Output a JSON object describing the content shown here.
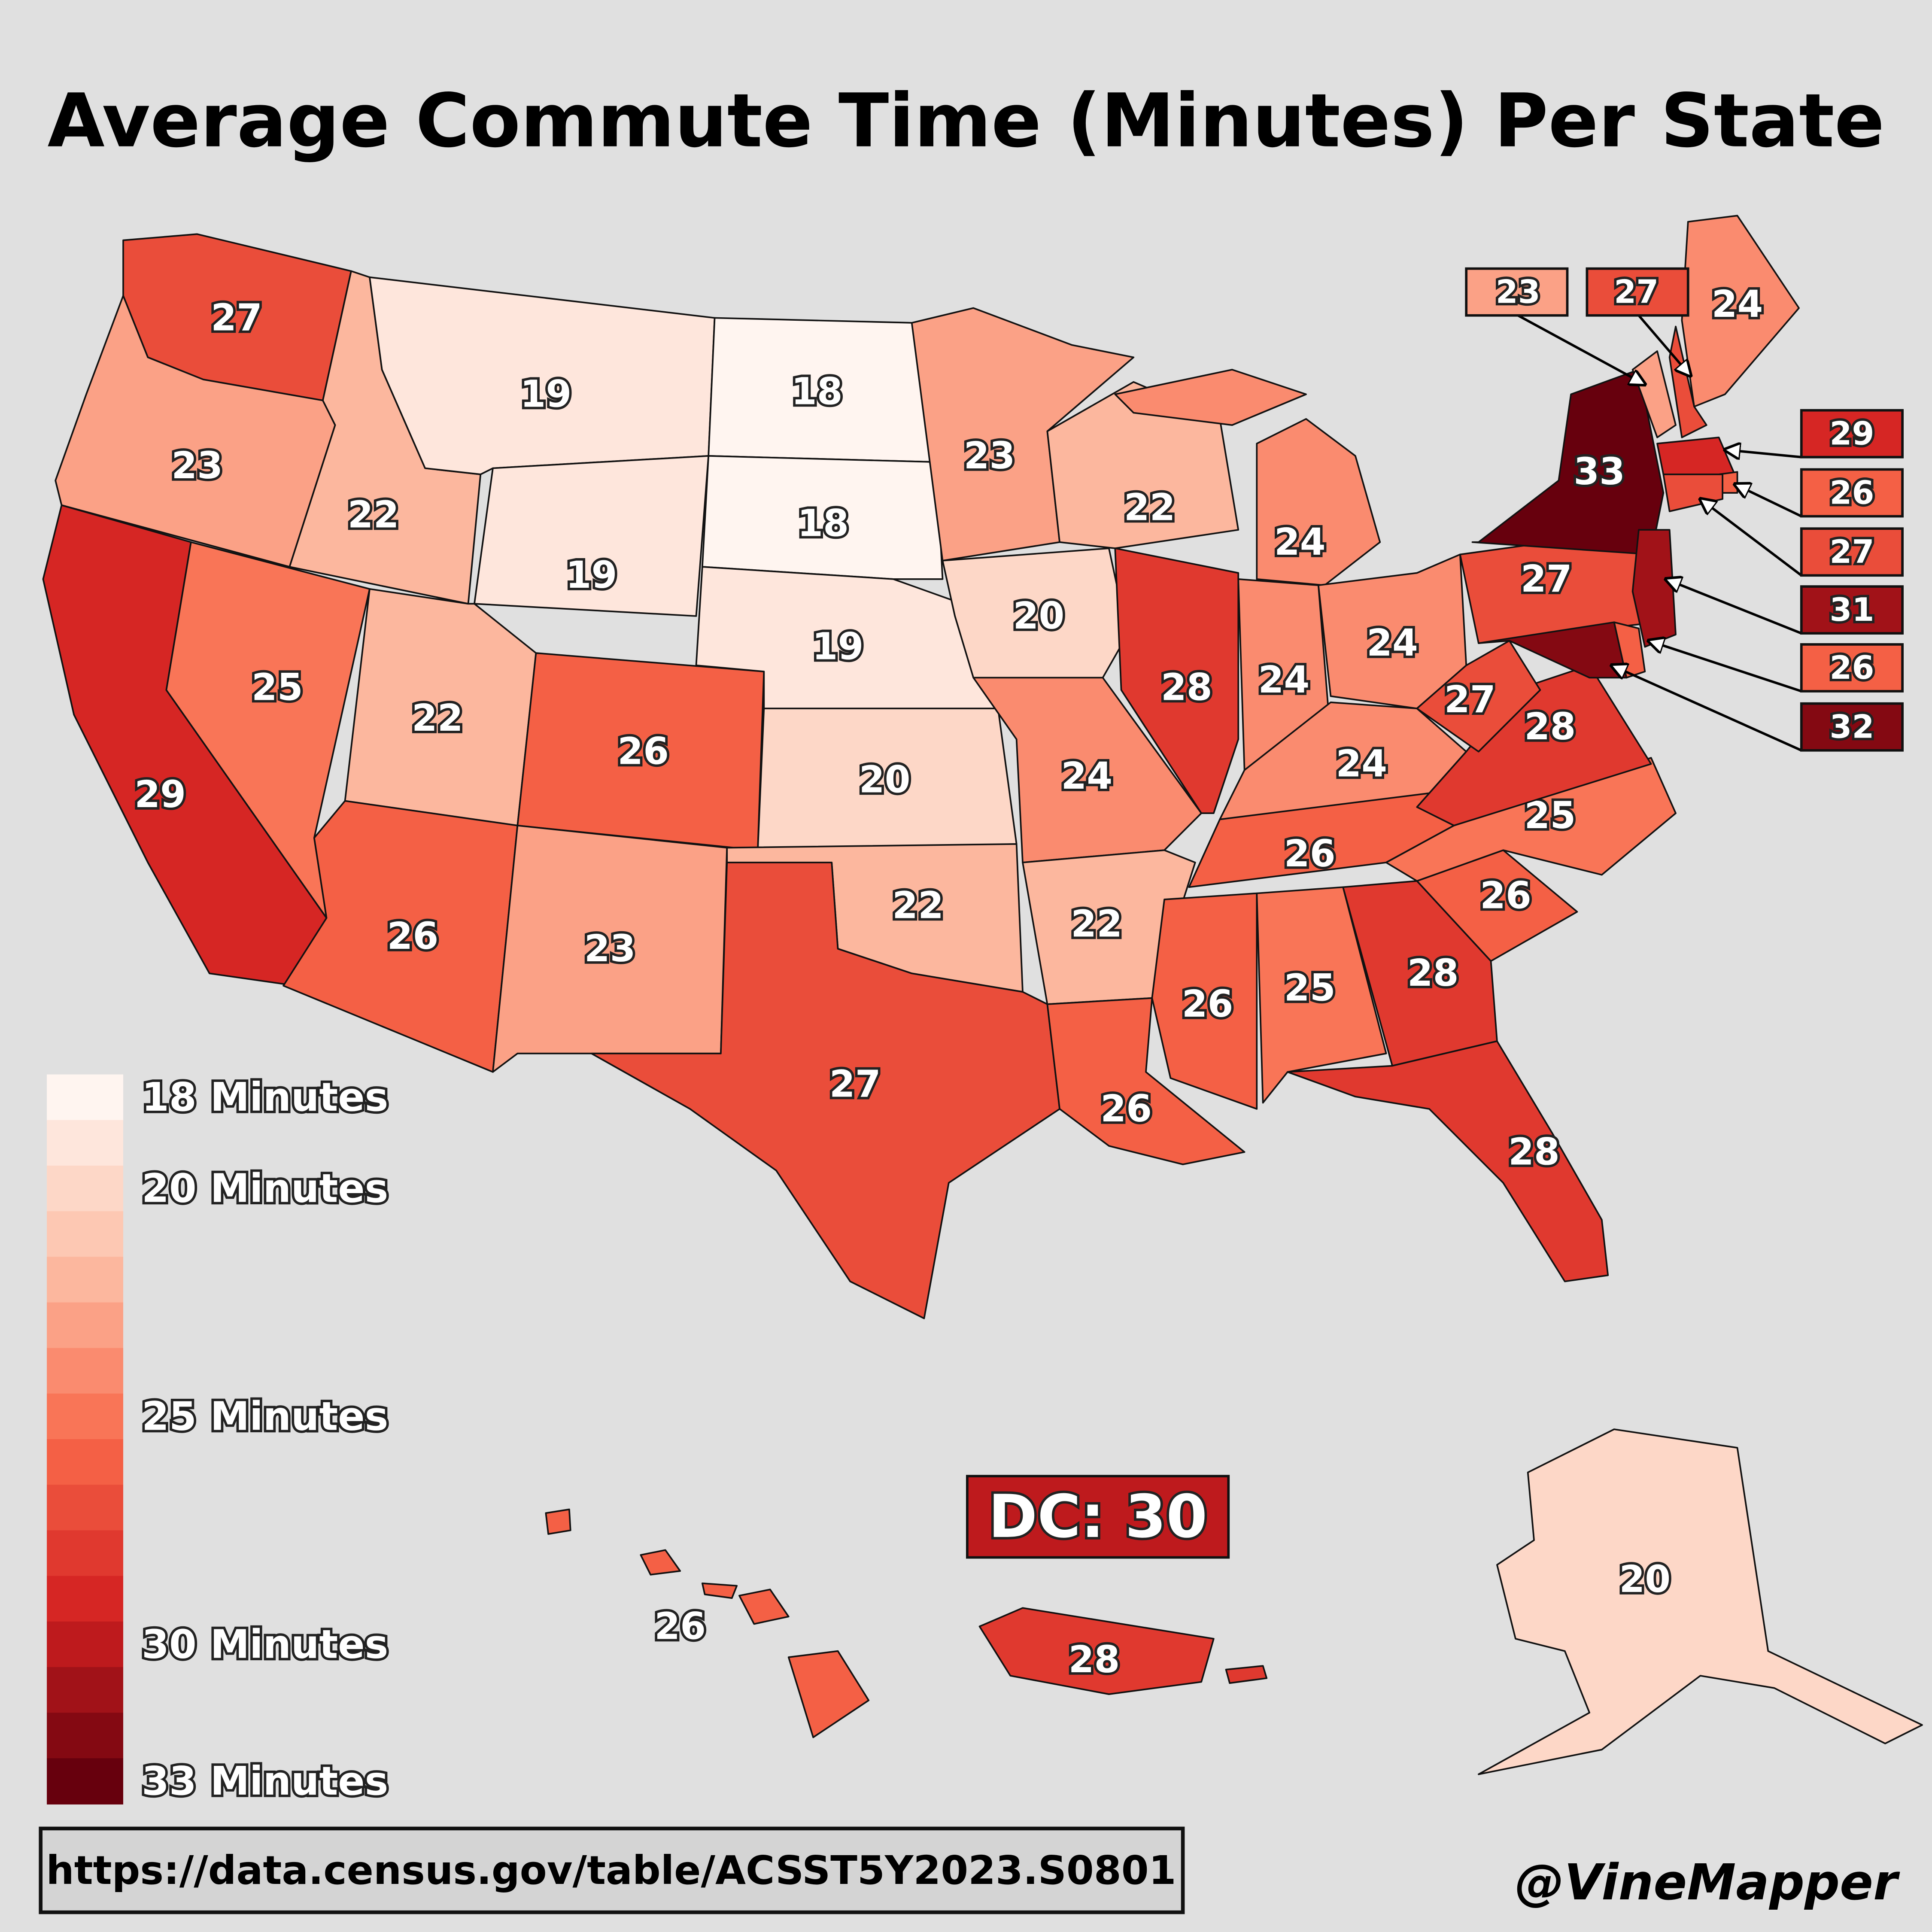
{
  "title": "Average Commute Time (Minutes) Per State",
  "source": "https://data.census.gov/table/ACSST5Y2023.S0801",
  "credit": "@VineMapper",
  "colorscale": [
    "#fff5f0",
    "#fcbda4",
    "#f96a4b",
    "#d42121",
    "#67000d"
  ],
  "legend": {
    "min": 18,
    "max": 33,
    "ticks": [
      {
        "value": 18,
        "label": "18 Minutes"
      },
      {
        "value": 20,
        "label": "20 Minutes"
      },
      {
        "value": 25,
        "label": "25 Minutes"
      },
      {
        "value": 30,
        "label": "30 Minutes"
      },
      {
        "value": 33,
        "label": "33 Minutes"
      }
    ]
  },
  "states": {
    "values": [
      27,
      23,
      29,
      22,
      25,
      19,
      19,
      22,
      26,
      26,
      23,
      18,
      18,
      19,
      20,
      22,
      27,
      23,
      20,
      24,
      22,
      26,
      22,
      28,
      24,
      24,
      24,
      24,
      26,
      26,
      25,
      28,
      28,
      26,
      25,
      28,
      27,
      27,
      33,
      24,
      23,
      27,
      29,
      26,
      27,
      31,
      26,
      32,
      20,
      26,
      28
    ]
  },
  "dc": {
    "label": "DC: 30",
    "value": 30
  }
}
